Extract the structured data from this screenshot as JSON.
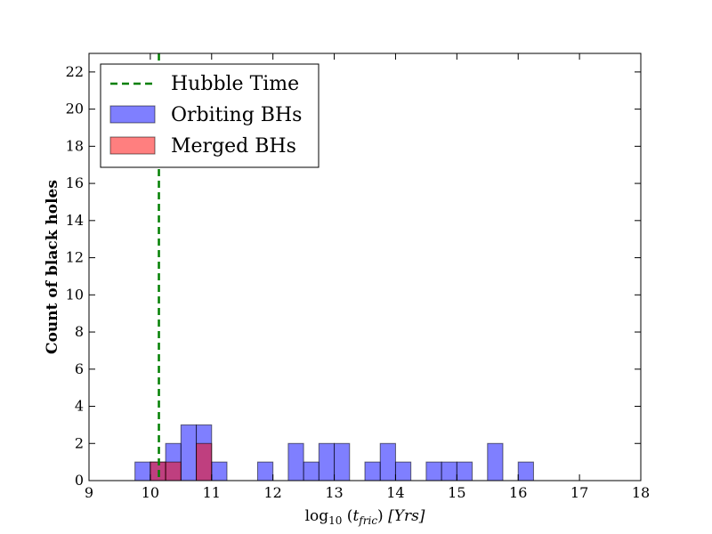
{
  "chart_data": {
    "type": "histogram",
    "xlabel": "log10 (t_fric) [Yrs]",
    "xlabel_parts": {
      "log": "log",
      "log_sub": "10",
      "t": "t",
      "t_sub": "fric",
      "units": "[Yrs]"
    },
    "ylabel": "Count of black holes",
    "xlim": [
      9,
      18
    ],
    "ylim": [
      0,
      23
    ],
    "x_ticks": [
      9,
      10,
      11,
      12,
      13,
      14,
      15,
      16,
      17,
      18
    ],
    "y_ticks": [
      0,
      2,
      4,
      6,
      8,
      10,
      12,
      14,
      16,
      18,
      20,
      22
    ],
    "bin_width": 0.25,
    "series": [
      {
        "name": "Orbiting BHs",
        "color": "#0000ff",
        "opacity": 0.5,
        "bins": [
          {
            "x0": 9.75,
            "count": 1
          },
          {
            "x0": 10.0,
            "count": 1
          },
          {
            "x0": 10.25,
            "count": 2
          },
          {
            "x0": 10.5,
            "count": 3
          },
          {
            "x0": 10.75,
            "count": 3
          },
          {
            "x0": 11.0,
            "count": 1
          },
          {
            "x0": 11.75,
            "count": 1
          },
          {
            "x0": 12.25,
            "count": 2
          },
          {
            "x0": 12.5,
            "count": 1
          },
          {
            "x0": 12.75,
            "count": 2
          },
          {
            "x0": 13.0,
            "count": 2
          },
          {
            "x0": 13.5,
            "count": 1
          },
          {
            "x0": 13.75,
            "count": 2
          },
          {
            "x0": 14.0,
            "count": 1
          },
          {
            "x0": 14.5,
            "count": 1
          },
          {
            "x0": 14.75,
            "count": 1
          },
          {
            "x0": 15.0,
            "count": 1
          },
          {
            "x0": 15.5,
            "count": 2
          },
          {
            "x0": 16.0,
            "count": 1
          }
        ]
      },
      {
        "name": "Merged BHs",
        "color": "#ff0000",
        "opacity": 0.5,
        "bins": [
          {
            "x0": 10.0,
            "count": 1
          },
          {
            "x0": 10.25,
            "count": 1
          },
          {
            "x0": 10.75,
            "count": 2
          }
        ]
      }
    ],
    "vline": {
      "name": "Hubble Time",
      "x": 10.14,
      "color": "#007f00",
      "style": "dashed"
    },
    "legend": {
      "position": "top-left"
    },
    "grid": false
  }
}
